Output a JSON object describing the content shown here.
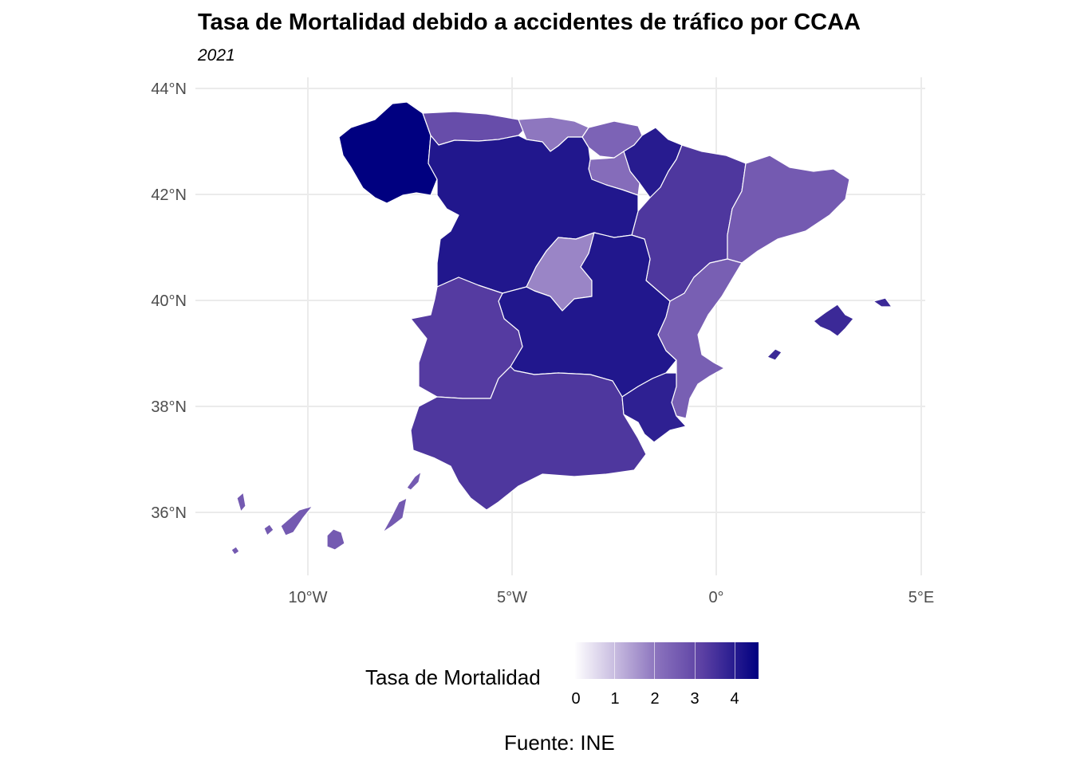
{
  "title": "Tasa de Mortalidad debido a accidentes de tráfico por CCAA",
  "subtitle": "2021",
  "caption": "Fuente: INE",
  "legend": {
    "title": "Tasa de Mortalidad",
    "ticks": [
      "0",
      "1",
      "2",
      "3",
      "4"
    ],
    "color_low": "#ffffff",
    "color_high": "#000080"
  },
  "axes": {
    "y_labels": [
      "44°N",
      "42°N",
      "40°N",
      "38°N",
      "36°N"
    ],
    "x_labels": [
      "10°W",
      "5°W",
      "0°",
      "5°E"
    ]
  },
  "chart_data": {
    "type": "choropleth",
    "title": "Tasa de Mortalidad debido a accidentes de tráfico por CCAA",
    "subtitle": "2021",
    "value_label": "Tasa de Mortalidad",
    "scale_range": [
      0,
      4.6
    ],
    "regions": [
      {
        "name": "Galicia",
        "value": 4.6
      },
      {
        "name": "Asturias",
        "value": 2.9
      },
      {
        "name": "Cantabria",
        "value": 2.0
      },
      {
        "name": "País Vasco",
        "value": 2.4
      },
      {
        "name": "Navarra",
        "value": 4.0
      },
      {
        "name": "La Rioja",
        "value": 2.2
      },
      {
        "name": "Aragón",
        "value": 3.4
      },
      {
        "name": "Cataluña",
        "value": 2.6
      },
      {
        "name": "Castilla y León",
        "value": 4.1
      },
      {
        "name": "Madrid",
        "value": 1.8
      },
      {
        "name": "Castilla-La Mancha",
        "value": 4.1
      },
      {
        "name": "Comunitat Valenciana",
        "value": 2.5
      },
      {
        "name": "Extremadura",
        "value": 3.3
      },
      {
        "name": "Andalucía",
        "value": 3.4
      },
      {
        "name": "Región de Murcia",
        "value": 3.9
      },
      {
        "name": "Illes Balears",
        "value": 3.7
      },
      {
        "name": "Canarias",
        "value": 2.6
      }
    ]
  }
}
